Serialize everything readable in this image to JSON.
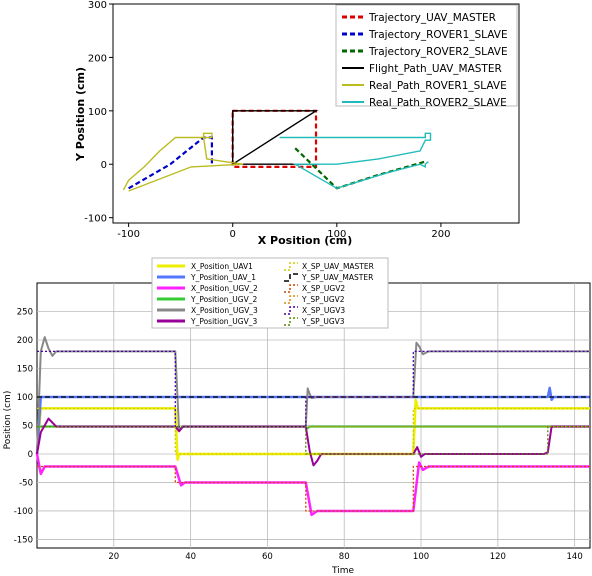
{
  "chart_data": [
    {
      "type": "line",
      "xlabel": "X Position (cm)",
      "ylabel": "Y Position (cm)",
      "xlim": [
        -115,
        275
      ],
      "ylim": [
        -110,
        300
      ],
      "x_ticks": [
        -100,
        0,
        100,
        200
      ],
      "y_ticks": [
        -100,
        0,
        100,
        200,
        300
      ],
      "x_tick_labels": [
        "-100",
        "0",
        "100",
        "200"
      ],
      "y_tick_labels": [
        "-100",
        "0",
        "100",
        "200",
        "300"
      ],
      "grid": false,
      "legend_position": "top-right",
      "series": [
        {
          "name": "Trajectory_UAV_MASTER",
          "color": "#dd0000",
          "dash": "dashed",
          "points": [
            [
              0,
              100
            ],
            [
              80,
              100
            ],
            [
              80,
              -5
            ],
            [
              0,
              -5
            ],
            [
              0,
              100
            ]
          ]
        },
        {
          "name": "Trajectory_ROVER1_SLAVE",
          "color": "#0000cc",
          "dash": "dashed",
          "points": [
            [
              -100,
              -45
            ],
            [
              -60,
              0
            ],
            [
              -28,
              50
            ],
            [
              -20,
              50
            ],
            [
              -20,
              0
            ]
          ]
        },
        {
          "name": "Trajectory_ROVER2_SLAVE",
          "color": "#006600",
          "dash": "dashed",
          "points": [
            [
              60,
              30
            ],
            [
              100,
              -45
            ],
            [
              140,
              -20
            ],
            [
              185,
              5
            ]
          ]
        },
        {
          "name": "Flight_Path_UAV_MASTER",
          "color": "#000000",
          "dash": "solid",
          "points": [
            [
              0,
              0
            ],
            [
              80,
              100
            ],
            [
              0,
              100
            ],
            [
              0,
              0
            ],
            [
              80,
              0
            ]
          ]
        },
        {
          "name": "Real_Path_ROVER1_SLAVE",
          "color": "#bbbb22",
          "dash": "solid",
          "points": [
            [
              -105,
              -48
            ],
            [
              -100,
              -30
            ],
            [
              -85,
              -5
            ],
            [
              -70,
              25
            ],
            [
              -55,
              50
            ],
            [
              -28,
              50
            ],
            [
              -28,
              58
            ],
            [
              -20,
              58
            ],
            [
              -20,
              50
            ],
            [
              -28,
              50
            ],
            [
              -25,
              10
            ],
            [
              -8,
              5
            ],
            [
              10,
              0
            ],
            [
              -40,
              -5
            ],
            [
              -100,
              -50
            ]
          ]
        },
        {
          "name": "Real_Path_ROVER2_SLAVE",
          "color": "#22bbbb",
          "dash": "solid",
          "points": [
            [
              45,
              50
            ],
            [
              185,
              50
            ],
            [
              185,
              58
            ],
            [
              190,
              58
            ],
            [
              190,
              45
            ],
            [
              185,
              45
            ],
            [
              180,
              25
            ],
            [
              140,
              10
            ],
            [
              100,
              0
            ],
            [
              60,
              0
            ],
            [
              100,
              -45
            ],
            [
              150,
              -15
            ],
            [
              180,
              0
            ],
            [
              185,
              -5
            ],
            [
              185,
              0
            ],
            [
              188,
              5
            ]
          ]
        }
      ]
    },
    {
      "type": "line",
      "xlabel": "Time",
      "ylabel": "Position (cm)",
      "xlim": [
        0,
        144
      ],
      "ylim": [
        -165,
        300
      ],
      "x_ticks": [
        20,
        40,
        60,
        80,
        100,
        120,
        140
      ],
      "y_ticks": [
        -150,
        -100,
        -50,
        0,
        50,
        100,
        150,
        200,
        250
      ],
      "x_tick_labels": [
        "20",
        "40",
        "60",
        "80",
        "100",
        "120",
        "140"
      ],
      "y_tick_labels": [
        "-150",
        "-100",
        "-50",
        "0",
        "50",
        "100",
        "150",
        "200",
        "250"
      ],
      "grid": true,
      "legend_position": "top-center",
      "series": [
        {
          "name": "X_Position_UAV1",
          "color": "#eeee00",
          "width": 2.5,
          "dash": "solid",
          "points": [
            [
              0,
              0
            ],
            [
              1,
              80
            ],
            [
              36,
              80
            ],
            [
              36.6,
              -10
            ],
            [
              37,
              0
            ],
            [
              98,
              0
            ],
            [
              98.6,
              95
            ],
            [
              99.2,
              80
            ],
            [
              144,
              80
            ]
          ]
        },
        {
          "name": "Y_Position_UAV_1",
          "color": "#5577ff",
          "width": 2.5,
          "dash": "solid",
          "points": [
            [
              0,
              0
            ],
            [
              1,
              100
            ],
            [
              133,
              100
            ],
            [
              133.5,
              116
            ],
            [
              134,
              95
            ],
            [
              134.5,
              100
            ],
            [
              144,
              100
            ]
          ]
        },
        {
          "name": "X_Position_UGV_2",
          "color": "#ff22ff",
          "width": 2.5,
          "dash": "solid",
          "points": [
            [
              0,
              0
            ],
            [
              1,
              -35
            ],
            [
              2,
              -22
            ],
            [
              36,
              -22
            ],
            [
              37.5,
              -55
            ],
            [
              38.5,
              -50
            ],
            [
              70,
              -50
            ],
            [
              71.5,
              -107
            ],
            [
              73,
              -100
            ],
            [
              98,
              -100
            ],
            [
              99.5,
              -15
            ],
            [
              100.5,
              -28
            ],
            [
              102,
              -22
            ],
            [
              144,
              -22
            ]
          ]
        },
        {
          "name": "Y_Position_UGV_2",
          "color": "#33cc33",
          "width": 2,
          "dash": "solid",
          "points": [
            [
              0,
              48
            ],
            [
              36,
              48
            ],
            [
              37,
              44
            ],
            [
              38,
              48
            ],
            [
              70,
              48
            ],
            [
              70.5,
              45
            ],
            [
              71,
              48
            ],
            [
              144,
              48
            ]
          ]
        },
        {
          "name": "X_Position_UGV_3",
          "color": "#888888",
          "width": 2,
          "dash": "solid",
          "points": [
            [
              0,
              0
            ],
            [
              1,
              180
            ],
            [
              2,
              205
            ],
            [
              3,
              185
            ],
            [
              4,
              172
            ],
            [
              5,
              180
            ],
            [
              36,
              180
            ],
            [
              37,
              40
            ],
            [
              38,
              48
            ],
            [
              70,
              48
            ],
            [
              70.5,
              115
            ],
            [
              71,
              105
            ],
            [
              71.5,
              98
            ],
            [
              73,
              100
            ],
            [
              98,
              100
            ],
            [
              98.8,
              195
            ],
            [
              99.6,
              188
            ],
            [
              100.5,
              175
            ],
            [
              102,
              180
            ],
            [
              144,
              180
            ]
          ]
        },
        {
          "name": "Y_Position_UGV_3",
          "color": "#990099",
          "width": 2,
          "dash": "solid",
          "points": [
            [
              0,
              0
            ],
            [
              1,
              38
            ],
            [
              3,
              62
            ],
            [
              5,
              48
            ],
            [
              36,
              48
            ],
            [
              37,
              40
            ],
            [
              38,
              48
            ],
            [
              70,
              48
            ],
            [
              71,
              5
            ],
            [
              72,
              -20
            ],
            [
              73,
              -12
            ],
            [
              74,
              0
            ],
            [
              98,
              0
            ],
            [
              99,
              12
            ],
            [
              100,
              -5
            ],
            [
              101,
              0
            ],
            [
              132,
              0
            ],
            [
              133,
              3
            ],
            [
              134,
              48
            ],
            [
              144,
              48
            ]
          ]
        },
        {
          "name": "X_SP_UAV_MASTER",
          "color": "#cccc00",
          "width": 1.3,
          "dash": "dotted",
          "points": [
            [
              0,
              80
            ],
            [
              36,
              80
            ],
            [
              36,
              0
            ],
            [
              98,
              0
            ],
            [
              98,
              80
            ],
            [
              144,
              80
            ]
          ]
        },
        {
          "name": "Y_SP_UAV_MASTER",
          "color": "#000000",
          "width": 1.2,
          "dash": "dashed",
          "points": [
            [
              0,
              100
            ],
            [
              133,
              100
            ],
            [
              133,
              100
            ],
            [
              144,
              100
            ]
          ]
        },
        {
          "name": "X_SP_UGV2",
          "color": "#cc4400",
          "width": 1.3,
          "dash": "dotted",
          "points": [
            [
              0,
              -22
            ],
            [
              36,
              -22
            ],
            [
              36,
              -50
            ],
            [
              70,
              -50
            ],
            [
              70,
              -100
            ],
            [
              98,
              -100
            ],
            [
              98,
              -22
            ],
            [
              144,
              -22
            ]
          ]
        },
        {
          "name": "Y_SP_UGV2",
          "color": "#dd8800",
          "width": 1.3,
          "dash": "dotted",
          "points": [
            [
              0,
              48
            ],
            [
              144,
              48
            ]
          ]
        },
        {
          "name": "X_SP_UGV3",
          "color": "#4400aa",
          "width": 1.3,
          "dash": "dotted",
          "points": [
            [
              0,
              180
            ],
            [
              36,
              180
            ],
            [
              36,
              48
            ],
            [
              70,
              48
            ],
            [
              70,
              100
            ],
            [
              98,
              100
            ],
            [
              98,
              180
            ],
            [
              144,
              180
            ]
          ]
        },
        {
          "name": "Y_SP_UGV3",
          "color": "#558800",
          "width": 1.3,
          "dash": "dotted",
          "points": [
            [
              0,
              48
            ],
            [
              70,
              48
            ],
            [
              70,
              0
            ],
            [
              133,
              0
            ],
            [
              133,
              48
            ],
            [
              144,
              48
            ]
          ]
        }
      ]
    }
  ]
}
